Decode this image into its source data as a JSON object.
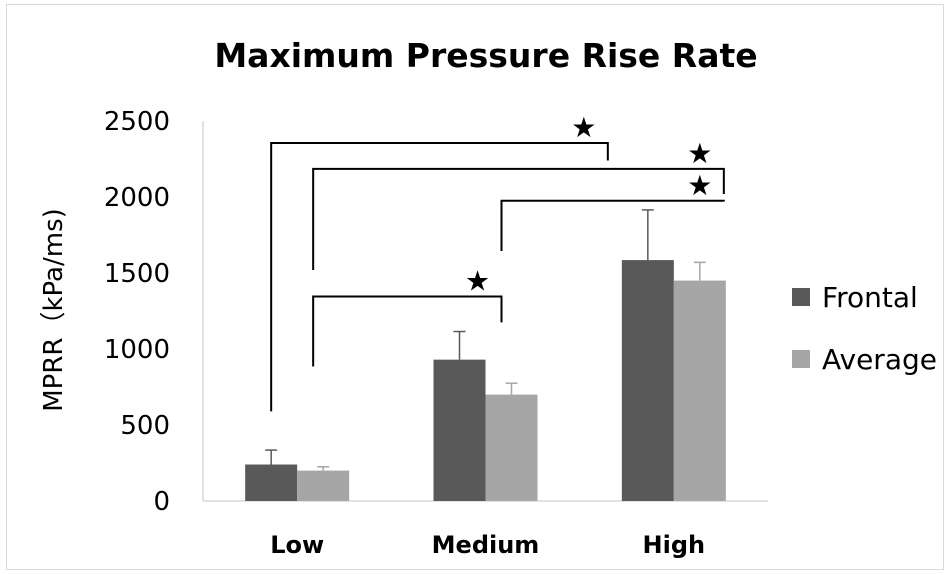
{
  "chart_data": {
    "type": "bar",
    "title": "Maximum Pressure Rise Rate",
    "ylabel": "MPRR（kPa/ms)",
    "xlabel": "",
    "categories": [
      "Low",
      "Medium",
      "High"
    ],
    "ylim": [
      0,
      2500
    ],
    "yticks": [
      "0",
      "500",
      "1000",
      "1500",
      "2000",
      "2500"
    ],
    "grid": false,
    "legend_position": "right",
    "series": [
      {
        "name": "Frontal",
        "values": [
          240,
          930,
          1585
        ],
        "errors": [
          95,
          185,
          330
        ],
        "color": "#595959"
      },
      {
        "name": "Average",
        "values": [
          200,
          700,
          1450
        ],
        "errors": [
          25,
          75,
          120
        ],
        "color": "#a6a6a6"
      }
    ],
    "significance_marker": "★",
    "significance_pairs": [
      {
        "from": "Low",
        "to": "High Frontal"
      },
      {
        "from": "Low Average",
        "to": "High Average"
      },
      {
        "from": "Medium",
        "to": "High Average"
      },
      {
        "from": "Low Average",
        "to": "Medium Average"
      }
    ]
  }
}
